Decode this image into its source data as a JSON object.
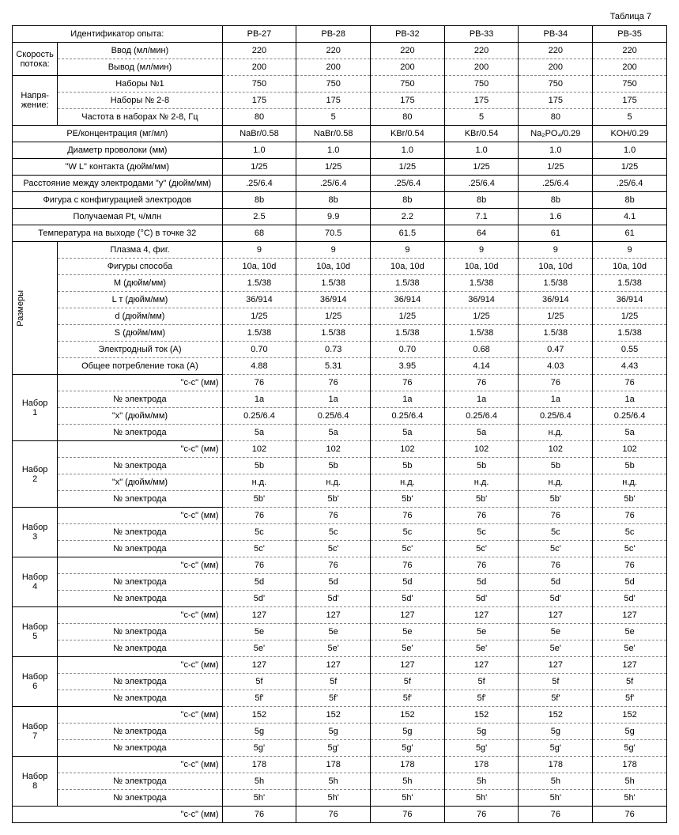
{
  "title": "Таблица 7",
  "header": {
    "id_label": "Идентификатор опыта:",
    "cols": [
      "PB-27",
      "PB-28",
      "PB-32",
      "PB-33",
      "PB-34",
      "PB-35"
    ]
  },
  "flow": {
    "group": "Скорость потока:",
    "in_label": "Ввод (мл/мин)",
    "in": [
      "220",
      "220",
      "220",
      "220",
      "220",
      "220"
    ],
    "out_label": "Вывод (мл/мин)",
    "out": [
      "200",
      "200",
      "200",
      "200",
      "200",
      "200"
    ]
  },
  "volt": {
    "group": "Напря- жение:",
    "s1_label": "Наборы №1",
    "s1": [
      "750",
      "750",
      "750",
      "750",
      "750",
      "750"
    ],
    "s28_label": "Наборы № 2-8",
    "s28": [
      "175",
      "175",
      "175",
      "175",
      "175",
      "175"
    ],
    "freq_label": "Частота в наборах № 2-8, Гц",
    "freq": [
      "80",
      "5",
      "80",
      "5",
      "80",
      "5"
    ]
  },
  "pe": {
    "label": "PE/концентрация (мг/мл)",
    "v": [
      "NaBr/0.58",
      "NaBr/0.58",
      "KBr/0.54",
      "KBr/0.54",
      "Na₂PO₄/0.29",
      "KOH/0.29"
    ]
  },
  "wire": {
    "label": "Диаметр проволоки (мм)",
    "v": [
      "1.0",
      "1.0",
      "1.0",
      "1.0",
      "1.0",
      "1.0"
    ]
  },
  "wl": {
    "label": "\"W L\" контакта (дюйм/мм)",
    "v": [
      "1/25",
      "1/25",
      "1/25",
      "1/25",
      "1/25",
      "1/25"
    ]
  },
  "dist": {
    "label": "Расстояние между   электродами \"y\" (дюйм/мм)",
    "v": [
      ".25/6.4",
      ".25/6.4",
      ".25/6.4",
      ".25/6.4",
      ".25/6.4",
      ".25/6.4"
    ]
  },
  "fig": {
    "label": "Фигура с конфигурацией электродов",
    "v": [
      "8b",
      "8b",
      "8b",
      "8b",
      "8b",
      "8b"
    ]
  },
  "pt": {
    "label": "Получаемая Pt, ч/млн",
    "v": [
      "2.5",
      "9.9",
      "2.2",
      "7.1",
      "1.6",
      "4.1"
    ]
  },
  "temp": {
    "label": "Температура на выходе (°C) в точке 32",
    "v": [
      "68",
      "70.5",
      "61.5",
      "64",
      "61",
      "61"
    ]
  },
  "dim": {
    "group": "Размеры",
    "plasma": {
      "label": "Плазма 4, фиг.",
      "v": [
        "9",
        "9",
        "9",
        "9",
        "9",
        "9"
      ]
    },
    "method": {
      "label": "Фигуры способа",
      "v": [
        "10a, 10d",
        "10a, 10d",
        "10a, 10d",
        "10a, 10d",
        "10a, 10d",
        "10a, 10d"
      ]
    },
    "M": {
      "label": "M (дюйм/мм)",
      "v": [
        "1.5/38",
        "1.5/38",
        "1.5/38",
        "1.5/38",
        "1.5/38",
        "1.5/38"
      ]
    },
    "LT": {
      "label": "L т  (дюйм/мм)",
      "v": [
        "36/914",
        "36/914",
        "36/914",
        "36/914",
        "36/914",
        "36/914"
      ]
    },
    "d": {
      "label": "d (дюйм/мм)",
      "v": [
        "1/25",
        "1/25",
        "1/25",
        "1/25",
        "1/25",
        "1/25"
      ]
    },
    "S": {
      "label": "S (дюйм/мм)",
      "v": [
        "1.5/38",
        "1.5/38",
        "1.5/38",
        "1.5/38",
        "1.5/38",
        "1.5/38"
      ]
    },
    "cur": {
      "label": "Электродный ток (А)",
      "v": [
        "0.70",
        "0.73",
        "0.70",
        "0.68",
        "0.47",
        "0.55"
      ]
    },
    "tot": {
      "label": "Общее потребление тока (А)",
      "v": [
        "4.88",
        "5.31",
        "3.95",
        "4.14",
        "4.03",
        "4.43"
      ]
    }
  },
  "labels": {
    "cc": "\"c-c\" (мм)",
    "ne": "№ электрода",
    "x": "\"x\" (дюйм/мм)"
  },
  "sets": [
    {
      "name": "Набор 1",
      "rows": [
        {
          "l": "cc",
          "v": [
            "76",
            "76",
            "76",
            "76",
            "76",
            "76"
          ]
        },
        {
          "l": "ne",
          "v": [
            "1a",
            "1a",
            "1a",
            "1a",
            "1a",
            "1a"
          ]
        },
        {
          "l": "x",
          "v": [
            "0.25/6.4",
            "0.25/6.4",
            "0.25/6.4",
            "0.25/6.4",
            "0.25/6.4",
            "0.25/6.4"
          ]
        },
        {
          "l": "ne",
          "v": [
            "5a",
            "5a",
            "5a",
            "5a",
            "н.д.",
            "5a"
          ]
        }
      ]
    },
    {
      "name": "Набор 2",
      "rows": [
        {
          "l": "cc",
          "v": [
            "102",
            "102",
            "102",
            "102",
            "102",
            "102"
          ]
        },
        {
          "l": "ne",
          "v": [
            "5b",
            "5b",
            "5b",
            "5b",
            "5b",
            "5b"
          ]
        },
        {
          "l": "x",
          "v": [
            "н.д.",
            "н.д.",
            "н.д.",
            "н.д.",
            "н.д.",
            "н.д."
          ]
        },
        {
          "l": "ne",
          "v": [
            "5b'",
            "5b'",
            "5b'",
            "5b'",
            "5b'",
            "5b'"
          ]
        }
      ]
    },
    {
      "name": "Набор 3",
      "rows": [
        {
          "l": "cc",
          "v": [
            "76",
            "76",
            "76",
            "76",
            "76",
            "76"
          ]
        },
        {
          "l": "ne",
          "v": [
            "5c",
            "5c",
            "5c",
            "5c",
            "5c",
            "5c"
          ]
        },
        {
          "l": "ne",
          "v": [
            "5c'",
            "5c'",
            "5c'",
            "5c'",
            "5c'",
            "5c'"
          ]
        }
      ]
    },
    {
      "name": "Набор 4",
      "rows": [
        {
          "l": "cc",
          "v": [
            "76",
            "76",
            "76",
            "76",
            "76",
            "76"
          ]
        },
        {
          "l": "ne",
          "v": [
            "5d",
            "5d",
            "5d",
            "5d",
            "5d",
            "5d"
          ]
        },
        {
          "l": "ne",
          "v": [
            "5d'",
            "5d'",
            "5d'",
            "5d'",
            "5d'",
            "5d'"
          ]
        }
      ]
    },
    {
      "name": "Набор 5",
      "rows": [
        {
          "l": "cc",
          "v": [
            "127",
            "127",
            "127",
            "127",
            "127",
            "127"
          ]
        },
        {
          "l": "ne",
          "v": [
            "5e",
            "5e",
            "5e",
            "5e",
            "5e",
            "5e"
          ]
        },
        {
          "l": "ne",
          "v": [
            "5e'",
            "5e'",
            "5e'",
            "5e'",
            "5e'",
            "5e'"
          ]
        }
      ]
    },
    {
      "name": "Набор 6",
      "rows": [
        {
          "l": "cc",
          "v": [
            "127",
            "127",
            "127",
            "127",
            "127",
            "127"
          ]
        },
        {
          "l": "ne",
          "v": [
            "5f",
            "5f",
            "5f",
            "5f",
            "5f",
            "5f"
          ]
        },
        {
          "l": "ne",
          "v": [
            "5f'",
            "5f'",
            "5f'",
            "5f'",
            "5f'",
            "5f'"
          ]
        }
      ]
    },
    {
      "name": "Набор 7",
      "rows": [
        {
          "l": "cc",
          "v": [
            "152",
            "152",
            "152",
            "152",
            "152",
            "152"
          ]
        },
        {
          "l": "ne",
          "v": [
            "5g",
            "5g",
            "5g",
            "5g",
            "5g",
            "5g"
          ]
        },
        {
          "l": "ne",
          "v": [
            "5g'",
            "5g'",
            "5g'",
            "5g'",
            "5g'",
            "5g'"
          ]
        }
      ]
    },
    {
      "name": "Набор 8",
      "rows": [
        {
          "l": "cc",
          "v": [
            "178",
            "178",
            "178",
            "178",
            "178",
            "178"
          ]
        },
        {
          "l": "ne",
          "v": [
            "5h",
            "5h",
            "5h",
            "5h",
            "5h",
            "5h"
          ]
        },
        {
          "l": "ne",
          "v": [
            "5h'",
            "5h'",
            "5h'",
            "5h'",
            "5h'",
            "5h'"
          ]
        }
      ]
    }
  ],
  "tail": {
    "l": "cc",
    "v": [
      "76",
      "76",
      "76",
      "76",
      "76",
      "76"
    ]
  }
}
